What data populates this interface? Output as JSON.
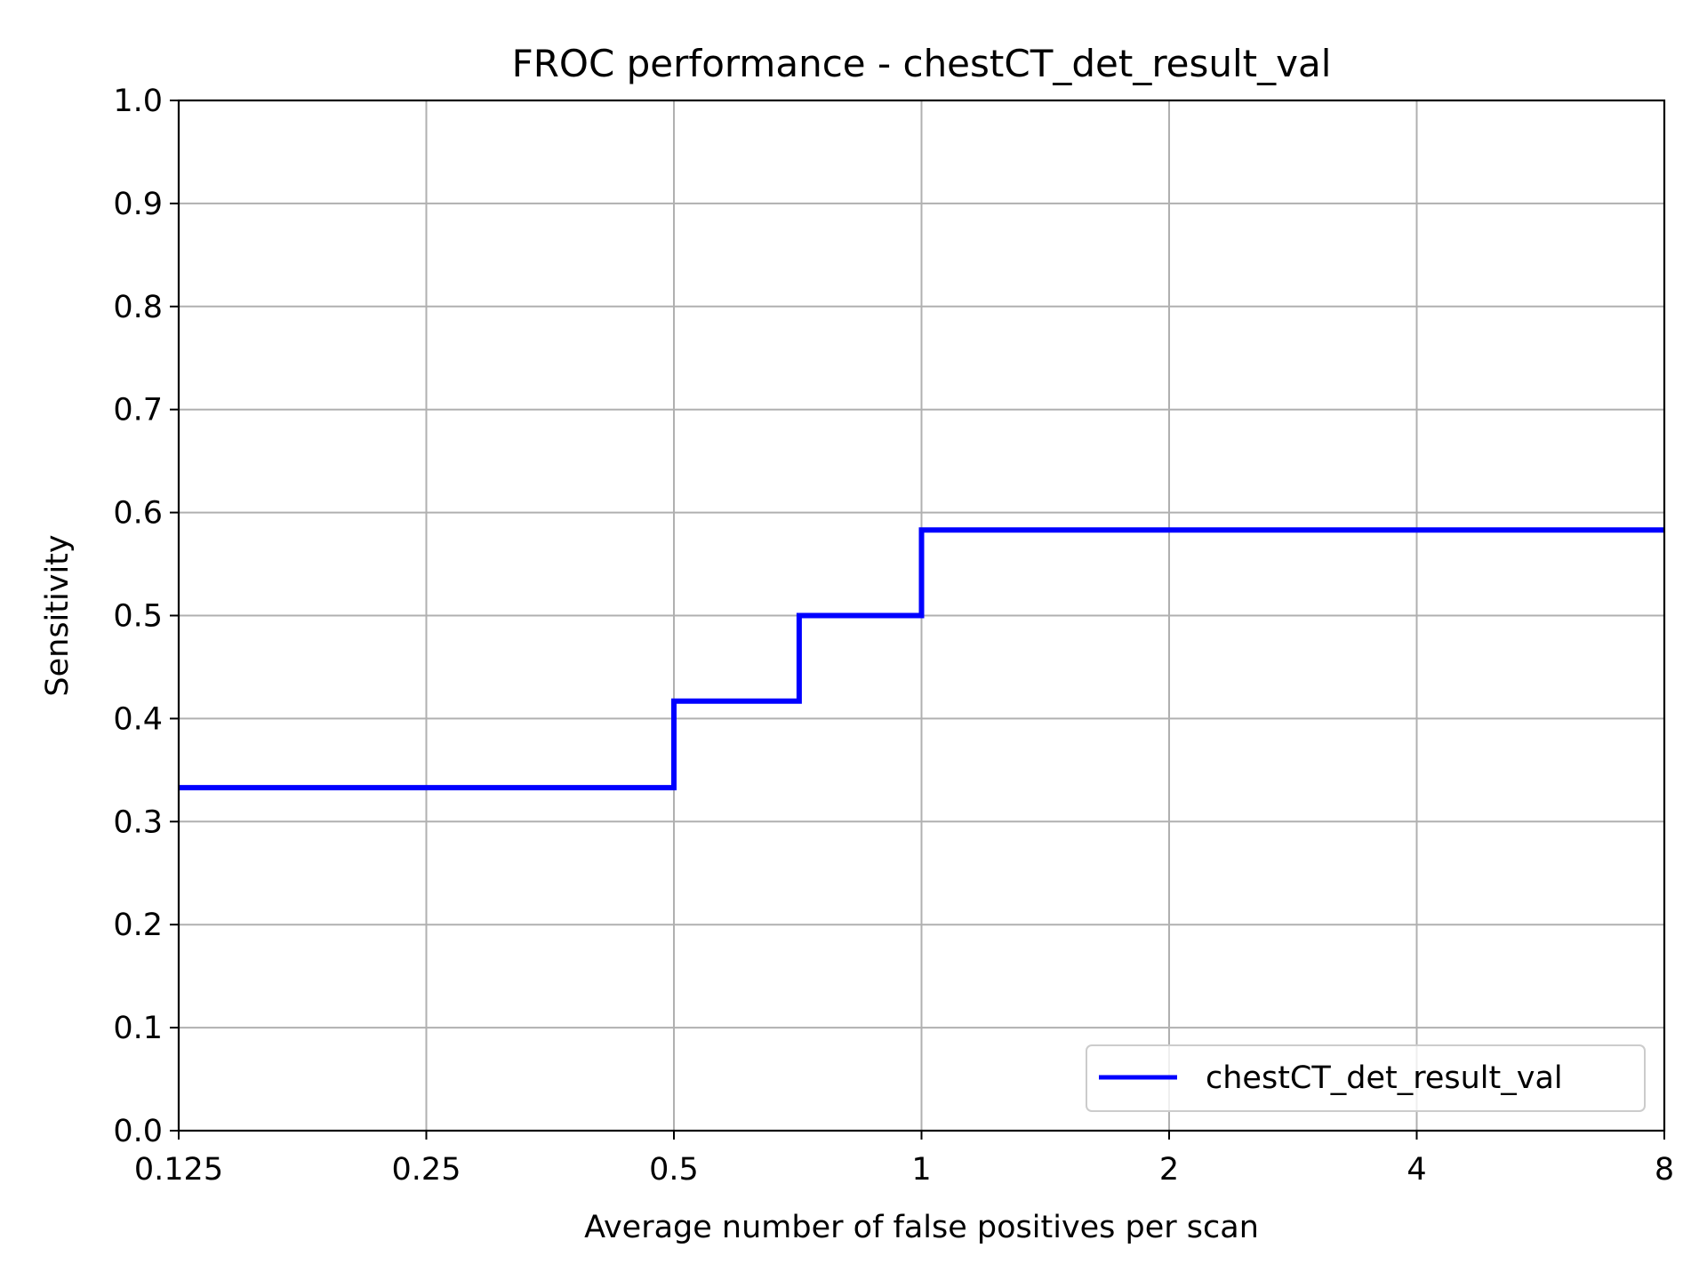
{
  "chart_data": {
    "type": "line",
    "title": "FROC performance - chestCT_det_result_val",
    "xlabel": "Average number of false positives per scan",
    "ylabel": "Sensitivity",
    "x_scale": "log2",
    "xlim": [
      0.125,
      8
    ],
    "ylim": [
      0.0,
      1.0
    ],
    "x_ticks": [
      0.125,
      0.25,
      0.5,
      1,
      2,
      4,
      8
    ],
    "x_tick_labels": [
      "0.125",
      "0.25",
      "0.5",
      "1",
      "2",
      "4",
      "8"
    ],
    "y_ticks": [
      0.0,
      0.1,
      0.2,
      0.3,
      0.4,
      0.5,
      0.6,
      0.7,
      0.8,
      0.9,
      1.0
    ],
    "y_tick_labels": [
      "0.0",
      "0.1",
      "0.2",
      "0.3",
      "0.4",
      "0.5",
      "0.6",
      "0.7",
      "0.8",
      "0.9",
      "1.0"
    ],
    "grid": true,
    "legend_position": "lower right",
    "series": [
      {
        "name": "chestCT_det_result_val",
        "color": "#0000ff",
        "x": [
          0.125,
          0.5,
          0.5,
          0.71,
          0.71,
          1.0,
          1.0,
          8
        ],
        "y": [
          0.333,
          0.333,
          0.417,
          0.417,
          0.5,
          0.5,
          0.583,
          0.583
        ]
      }
    ]
  }
}
